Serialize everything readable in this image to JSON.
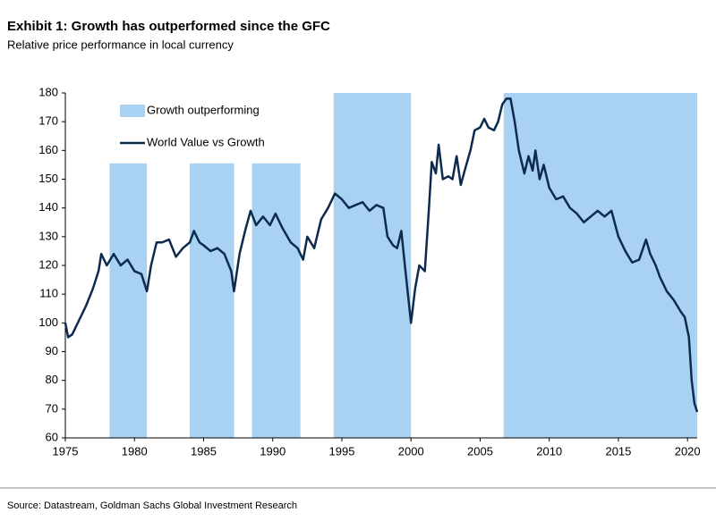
{
  "chart_data": {
    "type": "line",
    "title": "Exhibit 1: Growth has outperformed since the GFC",
    "subtitle": "Relative price performance in local currency",
    "source": "Source: Datastream, Goldman Sachs Global Investment Research",
    "x": [
      1975.0,
      1975.2,
      1975.5,
      1976,
      1976.5,
      1977,
      1977.4,
      1977.6,
      1978,
      1978.5,
      1979,
      1979.5,
      1980,
      1980.5,
      1980.9,
      1981.2,
      1981.6,
      1982,
      1982.5,
      1983,
      1983.5,
      1984,
      1984.3,
      1984.7,
      1985,
      1985.5,
      1986,
      1986.5,
      1987,
      1987.2,
      1987.6,
      1988,
      1988.4,
      1988.8,
      1989.3,
      1989.8,
      1990.2,
      1990.7,
      1991.3,
      1991.8,
      1992.2,
      1992.5,
      1993,
      1993.5,
      1994,
      1994.5,
      1995,
      1995.5,
      1996,
      1996.5,
      1997,
      1997.5,
      1998,
      1998.3,
      1998.7,
      1999,
      1999.3,
      1999.6,
      2000,
      2000.3,
      2000.6,
      2001,
      2001.3,
      2001.5,
      2001.8,
      2002,
      2002.3,
      2002.7,
      2003,
      2003.3,
      2003.6,
      2004,
      2004.3,
      2004.6,
      2005,
      2005.3,
      2005.6,
      2006,
      2006.3,
      2006.6,
      2006.9,
      2007.2,
      2007.5,
      2007.8,
      2008.2,
      2008.5,
      2008.8,
      2009,
      2009.3,
      2009.6,
      2010,
      2010.5,
      2011,
      2011.5,
      2012,
      2012.5,
      2013,
      2013.5,
      2014,
      2014.5,
      2015,
      2015.5,
      2016,
      2016.5,
      2017,
      2017.3,
      2017.7,
      2018,
      2018.5,
      2019,
      2019.5,
      2019.8,
      2020.1,
      2020.3,
      2020.5,
      2020.7
    ],
    "series": [
      {
        "name": "World Value vs Growth",
        "color": "#0d2a4f",
        "values": [
          100,
          95,
          96,
          101,
          106,
          112,
          118,
          124,
          120,
          124,
          120,
          122,
          118,
          117,
          111,
          120,
          128,
          128,
          129,
          123,
          126,
          128,
          132,
          128,
          127,
          125,
          126,
          124,
          118,
          111,
          124,
          132,
          139,
          134,
          137,
          134,
          138,
          133,
          128,
          126,
          122,
          130,
          126,
          136,
          140,
          145,
          143,
          140,
          141,
          142,
          139,
          141,
          140,
          130,
          127,
          126,
          132,
          118,
          100,
          112,
          120,
          118,
          140,
          156,
          152,
          162,
          150,
          151,
          150,
          158,
          148,
          155,
          160,
          167,
          168,
          171,
          168,
          167,
          170,
          176,
          178,
          178,
          170,
          160,
          152,
          158,
          153,
          160,
          150,
          155,
          147,
          143,
          144,
          140,
          138,
          135,
          137,
          139,
          137,
          139,
          130,
          125,
          121,
          122,
          129,
          124,
          120,
          116,
          111,
          108,
          104,
          102,
          95,
          80,
          72,
          69
        ]
      }
    ],
    "shaded": {
      "name": "Growth outperforming",
      "color": "#a9d1f1",
      "regions": [
        {
          "start": 1978.2,
          "end": 1980.9,
          "top": 155.5
        },
        {
          "start": 1984.0,
          "end": 1987.2,
          "top": 155.5
        },
        {
          "start": 1988.5,
          "end": 1992.0,
          "top": 155.5
        },
        {
          "start": 1994.4,
          "end": 2000.0,
          "top": 180
        },
        {
          "start": 2006.7,
          "end": 2020.7,
          "top": 180
        }
      ]
    },
    "xlim": [
      1975,
      2020.7
    ],
    "xticks": [
      1975,
      1980,
      1985,
      1990,
      1995,
      2000,
      2005,
      2010,
      2015,
      2020
    ],
    "ylim": [
      60,
      180
    ],
    "yticks": [
      60,
      70,
      80,
      90,
      100,
      110,
      120,
      130,
      140,
      150,
      160,
      170,
      180
    ]
  }
}
